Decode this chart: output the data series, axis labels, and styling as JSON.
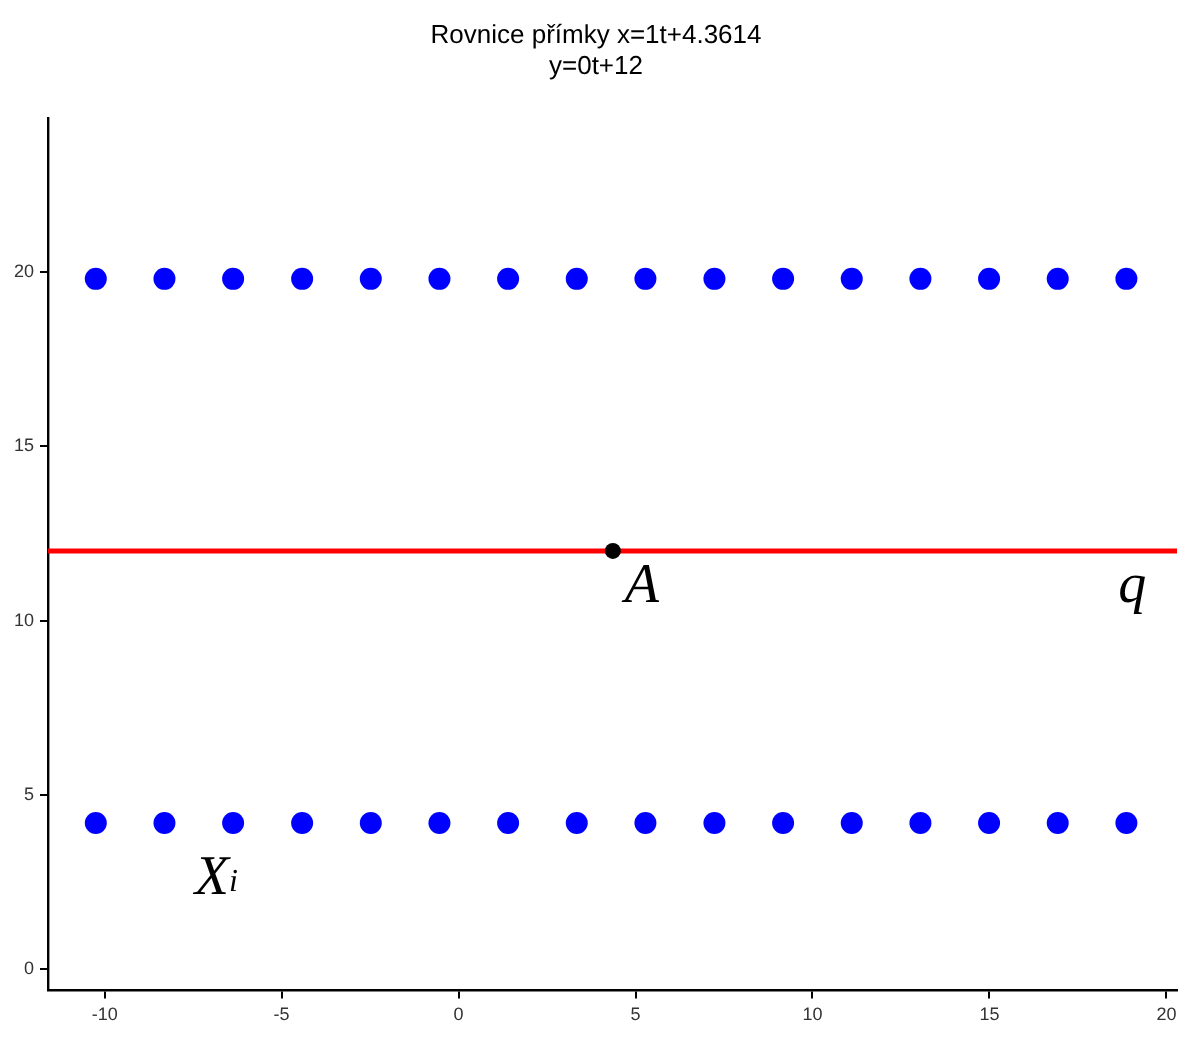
{
  "chart_data": {
    "type": "scatter",
    "title": "Rovnice přímky x=1t+4.3614",
    "subtitle": "y=0t+12",
    "xlim": [
      -11.6,
      20.3
    ],
    "ylim": [
      -0.6,
      24.4
    ],
    "xticks": [
      -10,
      -5,
      0,
      5,
      10,
      15,
      20
    ],
    "yticks": [
      0,
      5,
      10,
      15,
      20
    ],
    "grid": false,
    "legend": false,
    "series": [
      {
        "marker": "circle",
        "color": "#0000ff",
        "x": [
          -10.25,
          -8.31,
          -6.37,
          -4.42,
          -2.48,
          -0.54,
          1.4,
          3.34,
          5.28,
          7.23,
          9.17,
          11.11,
          13.05,
          14.99,
          16.93,
          18.87
        ],
        "values": [
          19.8,
          19.8,
          19.8,
          19.8,
          19.8,
          19.8,
          19.8,
          19.8,
          19.8,
          19.8,
          19.8,
          19.8,
          19.8,
          19.8,
          19.8,
          19.8
        ]
      },
      {
        "marker": "circle",
        "color": "#0000ff",
        "x": [
          -10.25,
          -8.31,
          -6.37,
          -4.42,
          -2.48,
          -0.54,
          1.4,
          3.34,
          5.28,
          7.23,
          9.17,
          11.11,
          13.05,
          14.99,
          16.93,
          18.87
        ],
        "values": [
          4.2,
          4.2,
          4.2,
          4.2,
          4.2,
          4.2,
          4.2,
          4.2,
          4.2,
          4.2,
          4.2,
          4.2,
          4.2,
          4.2,
          4.2,
          4.2
        ]
      },
      {
        "type": "line",
        "color": "#ff0000",
        "line_style": "solid",
        "x": [
          -11.6,
          20.3
        ],
        "values": [
          12,
          12
        ]
      },
      {
        "marker": "circle",
        "color": "#000000",
        "x": [
          4.36
        ],
        "values": [
          12
        ]
      }
    ],
    "annotations": [
      {
        "text": "A",
        "x": 4.36,
        "y": 12
      },
      {
        "text": "q",
        "x": 18.3,
        "y": 12
      },
      "X$_{i}$"
    ]
  }
}
